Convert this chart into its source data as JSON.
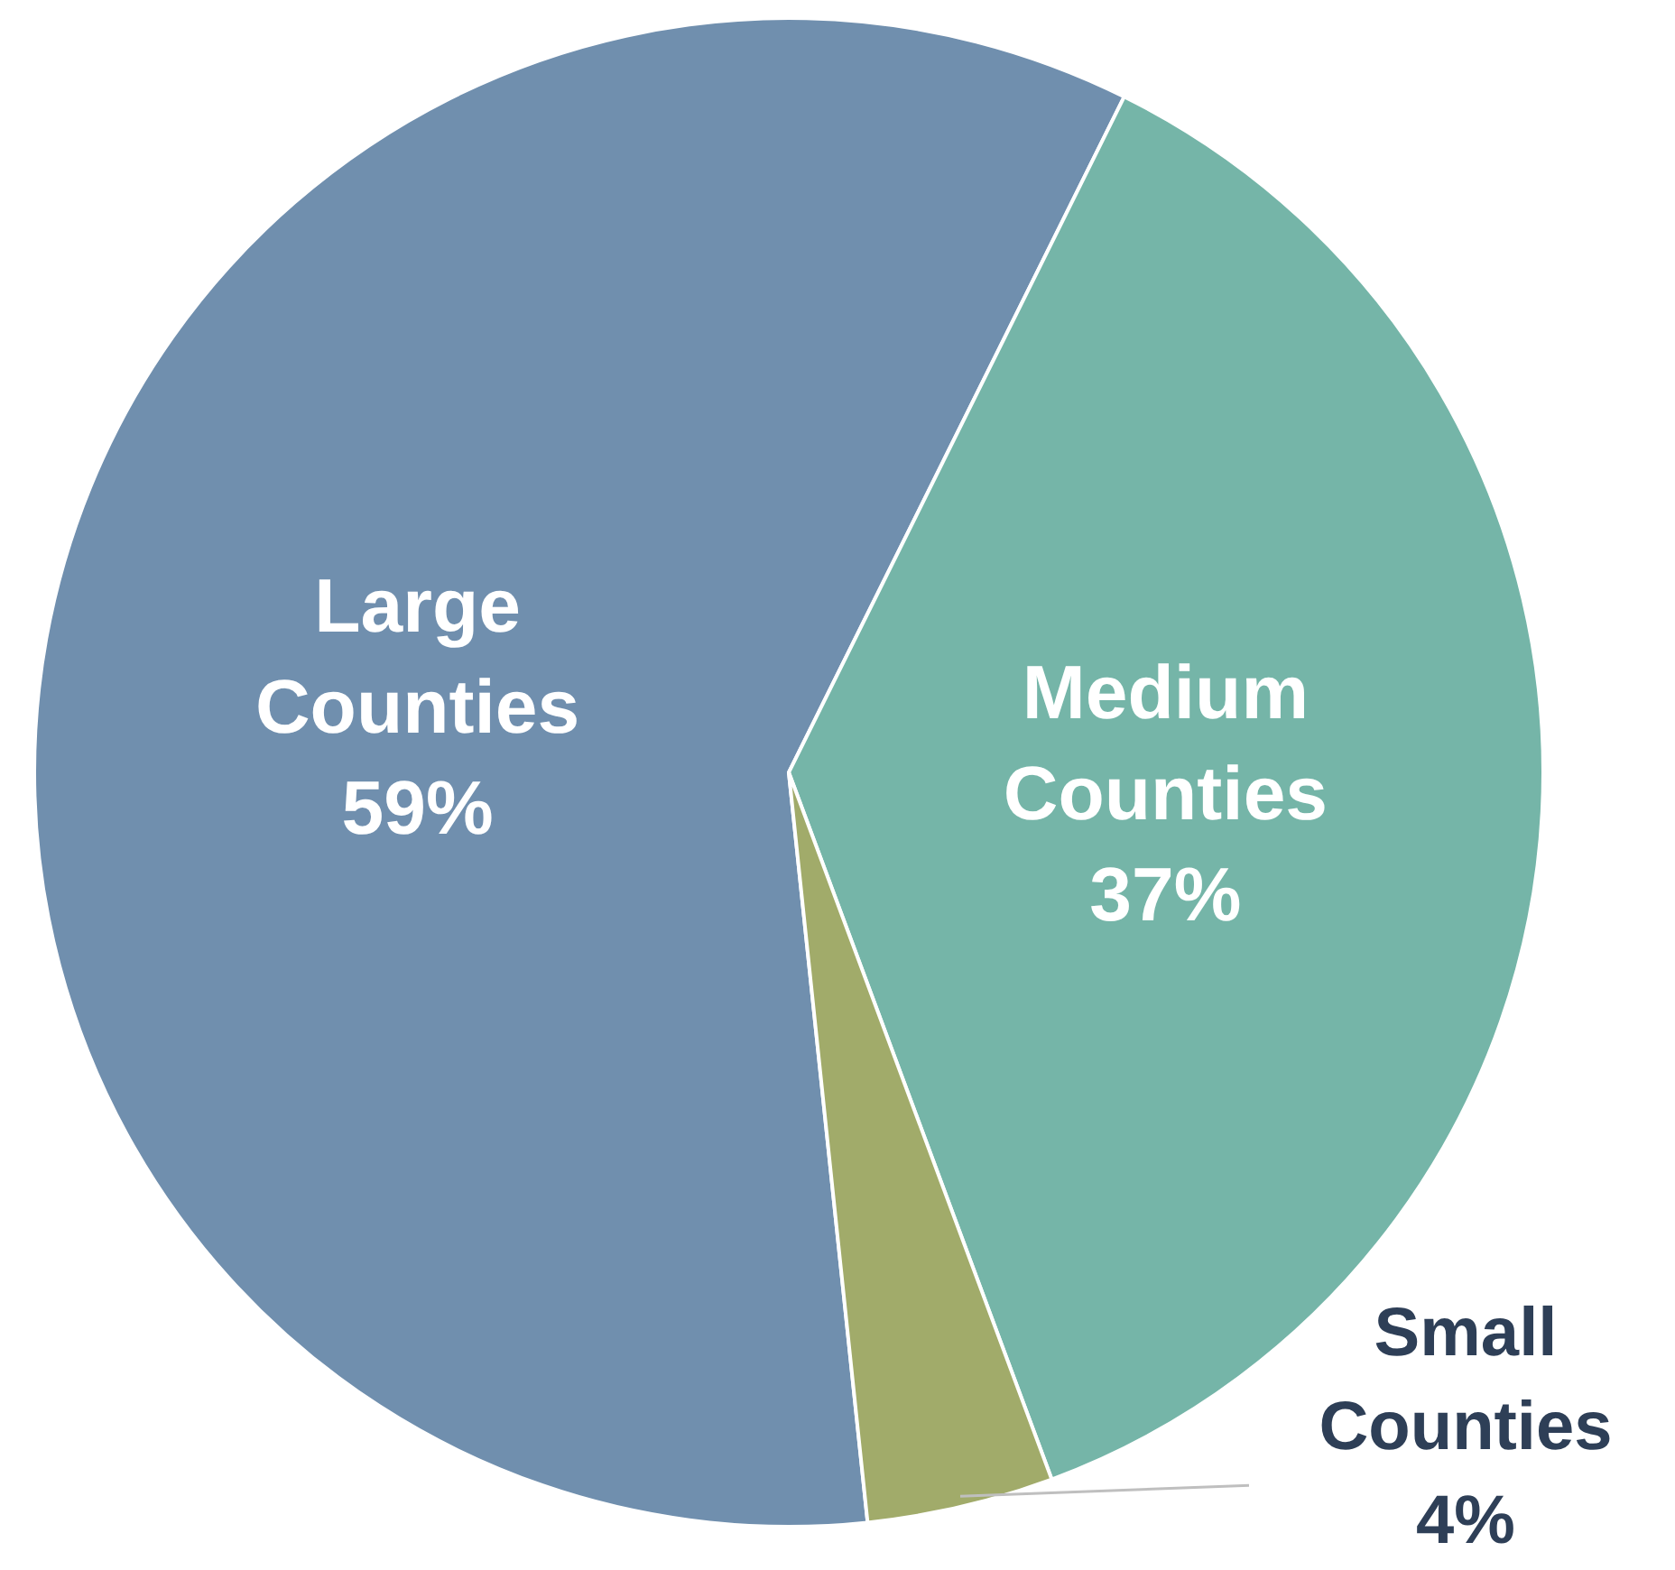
{
  "chart_data": {
    "type": "pie",
    "categories": [
      "Large Counties",
      "Medium Counties",
      "Small Counties"
    ],
    "values": [
      59,
      37,
      4
    ],
    "colors": [
      "#708fae",
      "#75b5a8",
      "#a1ab6a"
    ],
    "value_labels": [
      "59%",
      "37%",
      "4%"
    ]
  }
}
